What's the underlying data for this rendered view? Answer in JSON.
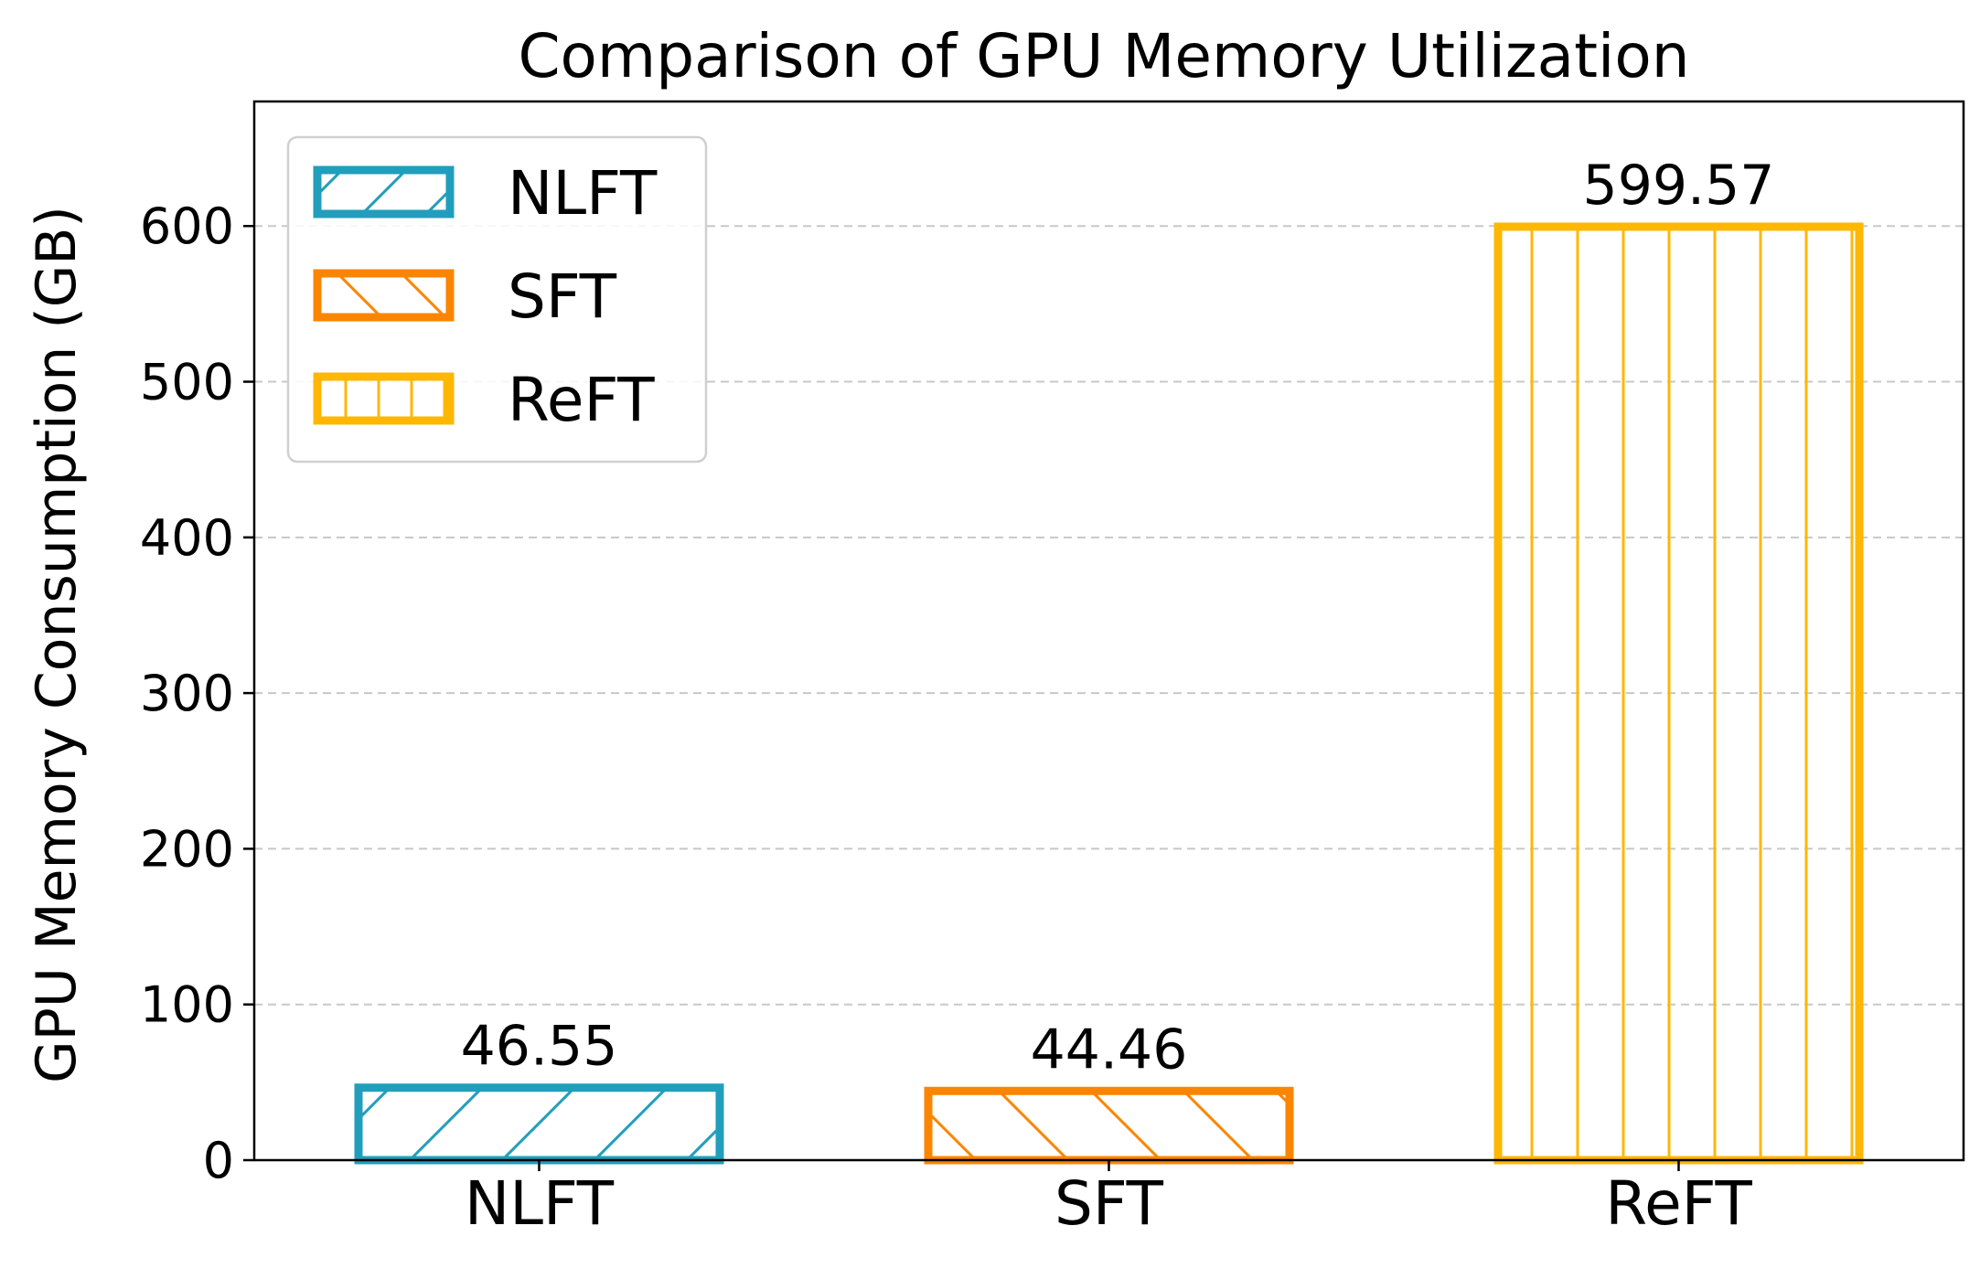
{
  "chart_data": {
    "type": "bar",
    "title": "Comparison of GPU Memory Utilization",
    "xlabel": "",
    "ylabel": "GPU Memory Consumption (GB)",
    "categories": [
      "NLFT",
      "SFT",
      "ReFT"
    ],
    "values": [
      46.55,
      44.46,
      599.57
    ],
    "value_labels": [
      "46.55",
      "44.46",
      "599.57"
    ],
    "colors": [
      "#219EBC",
      "#FB8500",
      "#FFB703"
    ],
    "hatches": [
      "diagonal-up",
      "diagonal-down",
      "vertical"
    ],
    "ylim": [
      0,
      680
    ],
    "yticks": [
      0,
      100,
      200,
      300,
      400,
      500,
      600
    ],
    "ytick_labels": [
      "0",
      "100",
      "200",
      "300",
      "400",
      "500",
      "600"
    ],
    "grid": {
      "axis": "y",
      "style": "dashed"
    },
    "legend": {
      "position": "top-left",
      "entries": [
        "NLFT",
        "SFT",
        "ReFT"
      ]
    }
  }
}
